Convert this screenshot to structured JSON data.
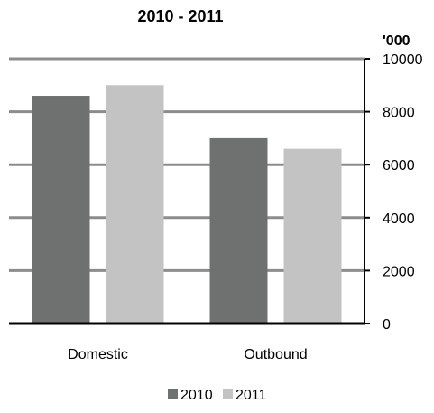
{
  "chart_data": {
    "type": "bar",
    "title_visible": "2010 - 2011",
    "unit_label": "'000",
    "categories": [
      "Domestic",
      "Outbound"
    ],
    "series": [
      {
        "name": "2010",
        "values": [
          8600,
          7000
        ],
        "color": "#6f7170"
      },
      {
        "name": "2011",
        "values": [
          9000,
          6600
        ],
        "color": "#c3c3c3"
      }
    ],
    "ylim": [
      0,
      10000
    ],
    "yticks": [
      0,
      2000,
      4000,
      6000,
      8000,
      10000
    ],
    "grid": true,
    "legend_position": "bottom-center",
    "ytick_side": "right"
  }
}
